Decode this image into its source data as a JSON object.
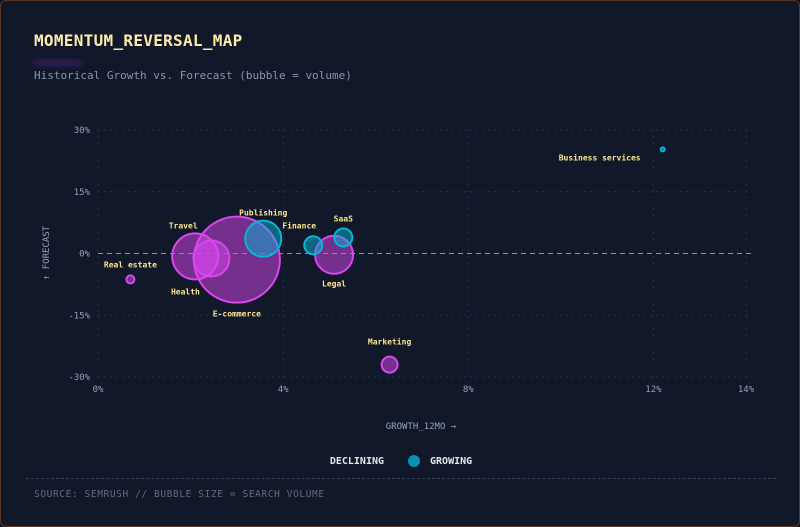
{
  "title": "MOMENTUM_REVERSAL_MAP",
  "subtitle": "Historical Growth vs. Forecast (bubble = volume)",
  "legend": {
    "declining": "DECLINING",
    "growing": "GROWING"
  },
  "footer": "SOURCE: SEMRUSH // BUBBLE SIZE = SEARCH VOLUME",
  "colors": {
    "declining": "#d946ef",
    "growing": "#06b6d4",
    "label": "#fde68a"
  },
  "chart_data": {
    "type": "scatter",
    "xlabel": "GROWTH_12MO →",
    "ylabel": "↑ FORECAST",
    "xlim": [
      0,
      14
    ],
    "ylim": [
      -30,
      30
    ],
    "xticks": [
      0,
      4,
      8,
      12,
      14
    ],
    "xtick_labels": [
      "0%",
      "4%",
      "8%",
      "12%",
      "14%"
    ],
    "yticks": [
      30,
      15,
      0,
      -15,
      -30
    ],
    "ytick_labels": [
      "30%",
      "15%",
      "0%",
      "-15%",
      "-30%"
    ],
    "grid": true,
    "legend_position": "bottom",
    "points": [
      {
        "name": "Business services",
        "x": 12.2,
        "y": 25.3,
        "volume": 4,
        "status": "growing"
      },
      {
        "name": "SaaS",
        "x": 5.3,
        "y": 3.9,
        "volume": 81,
        "status": "growing"
      },
      {
        "name": "Finance",
        "x": 4.65,
        "y": 2.0,
        "volume": 81,
        "status": "growing"
      },
      {
        "name": "Legal",
        "x": 5.1,
        "y": -0.3,
        "volume": 361,
        "status": "declining"
      },
      {
        "name": "E-commerce",
        "x": 3.0,
        "y": -1.5,
        "volume": 1849,
        "status": "declining"
      },
      {
        "name": "Travel",
        "x": 2.1,
        "y": -0.7,
        "volume": 529,
        "status": "declining"
      },
      {
        "name": "Health",
        "x": 2.45,
        "y": -1.2,
        "volume": 324,
        "status": "declining"
      },
      {
        "name": "Publishing",
        "x": 3.57,
        "y": 3.6,
        "volume": 324,
        "status": "growing"
      },
      {
        "name": "Real estate",
        "x": 0.7,
        "y": -6.3,
        "volume": 16,
        "status": "declining"
      },
      {
        "name": "Marketing",
        "x": 6.3,
        "y": -27.0,
        "volume": 64,
        "status": "declining"
      }
    ]
  }
}
